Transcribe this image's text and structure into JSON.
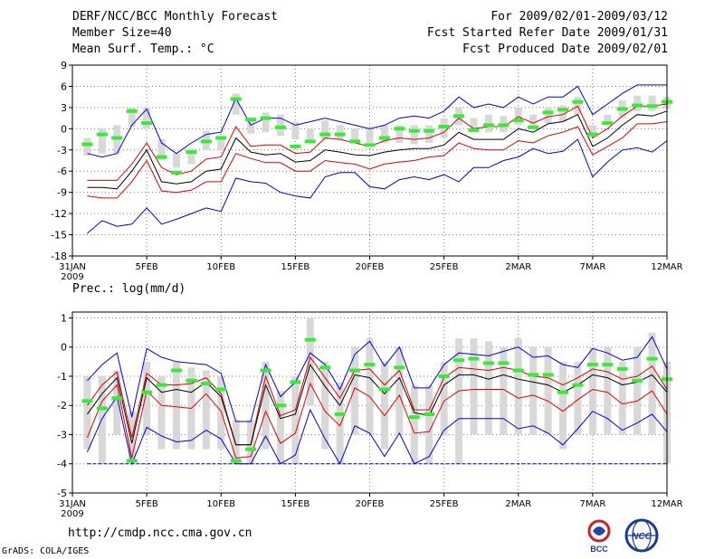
{
  "header": {
    "title": "DERF/NCC/BCC Monthly Forecast",
    "member_size": "Member Size=40",
    "variable": "Mean Surf. Temp.: °C",
    "forecast_period": "For 2009/02/01-2009/03/12",
    "start_date": "Fcst Started Refer Date 2009/01/31",
    "produced_date": "Fcst Produced Date 2009/02/01"
  },
  "footer": {
    "url": "http://cmdp.ncc.cma.gov.cn",
    "credit": "GrADS: COLA/IGES",
    "logo_left": "BCC",
    "logo_right": "NCC"
  },
  "colors": {
    "envelope": "#0000dd",
    "spread": "#dd0000",
    "mean": "#000000",
    "obs": "#33ee33",
    "box": "#d8d8d8",
    "floor_line": "#0000aa"
  },
  "x_ticks": [
    {
      "day": 0,
      "label": "31JAN",
      "label2": "2009"
    },
    {
      "day": 5,
      "label": "5FEB"
    },
    {
      "day": 10,
      "label": "10FEB"
    },
    {
      "day": 15,
      "label": "15FEB"
    },
    {
      "day": 20,
      "label": "20FEB"
    },
    {
      "day": 25,
      "label": "25FEB"
    },
    {
      "day": 30,
      "label": "2MAR"
    },
    {
      "day": 35,
      "label": "7MAR"
    },
    {
      "day": 40,
      "label": "12MAR"
    }
  ],
  "chart_data": [
    {
      "type": "line",
      "title": "Mean Surf. Temp.: °C",
      "ylim": [
        -18,
        9
      ],
      "yticks": [
        -18,
        -15,
        -12,
        -9,
        -6,
        -3,
        0,
        3,
        6,
        9
      ],
      "days": [
        1,
        2,
        3,
        4,
        5,
        6,
        7,
        8,
        9,
        10,
        11,
        12,
        13,
        14,
        15,
        16,
        17,
        18,
        19,
        20,
        21,
        22,
        23,
        24,
        25,
        26,
        27,
        28,
        29,
        30,
        31,
        32,
        33,
        34,
        35,
        36,
        37,
        38,
        39,
        40
      ],
      "series": [
        {
          "name": "max",
          "values": [
            -3.5,
            -4,
            -3.5,
            0.5,
            2.8,
            -2,
            -3.5,
            -2,
            -0.8,
            -0.5,
            4.3,
            0.5,
            1.5,
            1.5,
            0.5,
            1,
            1.5,
            1,
            0.5,
            0,
            0.5,
            1.5,
            1.8,
            1.5,
            2.5,
            4.5,
            3,
            3.5,
            3,
            4.5,
            3.5,
            4.5,
            4.5,
            6,
            2,
            3.5,
            5,
            6.2,
            6.2,
            6.2
          ]
        },
        {
          "name": "upper",
          "values": [
            -7.3,
            -7.3,
            -7.3,
            -5,
            -2,
            -5.5,
            -6.5,
            -6,
            -4.3,
            -4,
            0.3,
            -2.5,
            -2.3,
            -2.3,
            -3.5,
            -3.3,
            -1.3,
            -1.5,
            -2,
            -2.5,
            -1.7,
            -1.3,
            -1.5,
            -1.3,
            -0.5,
            1.5,
            0,
            0.3,
            0.3,
            1.7,
            0.8,
            1.7,
            2,
            3.2,
            -1.3,
            0,
            1.8,
            3.2,
            3.2,
            3.5
          ]
        },
        {
          "name": "mean",
          "values": [
            -8.3,
            -8.3,
            -8.5,
            -6,
            -3,
            -7.5,
            -7.8,
            -7.5,
            -6,
            -5.7,
            -1.3,
            -3.3,
            -3.7,
            -3.5,
            -4.7,
            -4.5,
            -3,
            -3.3,
            -3.7,
            -3.8,
            -3.3,
            -3,
            -2.8,
            -2.8,
            -2.3,
            -0.5,
            -1.5,
            -1.5,
            -1.5,
            0,
            -0.5,
            0.7,
            1,
            2,
            -2.5,
            -1.3,
            0.5,
            2,
            1.8,
            2.5
          ]
        },
        {
          "name": "lower",
          "values": [
            -9.5,
            -9.8,
            -9.8,
            -7.5,
            -4.5,
            -8.8,
            -9,
            -8.7,
            -7.5,
            -7.5,
            -3.5,
            -4.2,
            -4.8,
            -4.8,
            -6,
            -6,
            -4.5,
            -4.8,
            -5,
            -5.7,
            -5,
            -4.7,
            -4.5,
            -4,
            -3.8,
            -2,
            -2.8,
            -3,
            -3,
            -1.7,
            -2,
            -1,
            -0.5,
            0.3,
            -3.7,
            -2.5,
            -1.3,
            0.7,
            0.7,
            1
          ]
        },
        {
          "name": "min",
          "values": [
            -14.8,
            -13,
            -13.8,
            -13.5,
            -11.2,
            -13.5,
            -12.8,
            -12,
            -11.2,
            -11.7,
            -7,
            -7.5,
            -7.7,
            -9,
            -9.5,
            -9.8,
            -6.8,
            -6.2,
            -6.2,
            -8.2,
            -8.5,
            -7.2,
            -6.8,
            -7.2,
            -6.5,
            -7.5,
            -5.5,
            -5.5,
            -4.5,
            -4,
            -2.8,
            -3.5,
            -3.2,
            -1.5,
            -6.8,
            -4.7,
            -3,
            -2.7,
            -3.3,
            -1.7
          ]
        }
      ],
      "boxes_low": [
        -3.8,
        -3.5,
        -3.5,
        0.3,
        0,
        -4.5,
        -5.5,
        -5,
        -3,
        -3,
        2,
        -0.7,
        -0.5,
        -1,
        -1.5,
        -1.7,
        -1.5,
        -1.5,
        -2,
        -2,
        -2,
        -2,
        -2.2,
        -2,
        -1.3,
        0.5,
        -0.3,
        -0.5,
        -0.5,
        0.5,
        0,
        0.8,
        1,
        2,
        -0.8,
        0.5,
        1.5,
        2.5,
        2.5,
        2.8
      ],
      "boxes_high": [
        -1.3,
        0,
        0.5,
        3,
        3,
        -1.5,
        -3.5,
        -3,
        -0.3,
        -1,
        5,
        1.5,
        2.3,
        2,
        1,
        0,
        1.2,
        0.5,
        0,
        0,
        0.5,
        0.5,
        0.5,
        0.5,
        1.5,
        3,
        1.5,
        2,
        1.8,
        3,
        2,
        3,
        3.3,
        4.5,
        0.5,
        2,
        4,
        4.7,
        4.7,
        4.5
      ],
      "observed": [
        -2.2,
        -0.8,
        -1.3,
        2.5,
        0.8,
        -4,
        -6.2,
        -3.3,
        -1.8,
        -1.3,
        4.2,
        1.3,
        1.5,
        0.2,
        -2.5,
        -1.8,
        -0.8,
        -0.8,
        -1.8,
        -2.3,
        -1.3,
        0,
        -0.3,
        -0.3,
        0.3,
        1.8,
        -0.2,
        0.5,
        0.5,
        1.2,
        0.2,
        2.3,
        2.7,
        3.8,
        -0.8,
        0.8,
        2.8,
        3.3,
        3.2,
        3.8
      ]
    },
    {
      "type": "line",
      "title": "Prec.: log(mm/d)",
      "ylim": [
        -5,
        1.2
      ],
      "yticks": [
        -5,
        -4,
        -3,
        -2,
        -1,
        0,
        1
      ],
      "days": [
        1,
        2,
        3,
        4,
        5,
        6,
        7,
        8,
        9,
        10,
        11,
        12,
        13,
        14,
        15,
        16,
        17,
        18,
        19,
        20,
        21,
        22,
        23,
        24,
        25,
        26,
        27,
        28,
        29,
        30,
        31,
        32,
        33,
        34,
        35,
        36,
        37,
        38,
        39,
        40
      ],
      "series": [
        {
          "name": "max",
          "values": [
            -1.15,
            -0.6,
            -0.2,
            -2.4,
            -0.05,
            -0.35,
            -0.5,
            -0.55,
            -0.6,
            -0.9,
            -2.55,
            -2.55,
            -0.6,
            -1.7,
            -1.2,
            -0.2,
            -0.6,
            -1.45,
            -0.25,
            0.2,
            -0.65,
            0,
            -1.4,
            -1.4,
            -0.6,
            -0.2,
            -0.25,
            -0.3,
            -0.15,
            0,
            -0.35,
            -0.3,
            -0.6,
            -0.7,
            -0.05,
            -0.2,
            -0.45,
            -0.35,
            0.35,
            -0.75
          ]
        },
        {
          "name": "upper",
          "values": [
            -2,
            -1.3,
            -0.85,
            -3.1,
            -0.9,
            -1.3,
            -1.3,
            -1.25,
            -1.05,
            -1.6,
            -3.35,
            -3.35,
            -1,
            -2.35,
            -2.15,
            -0.35,
            -1.05,
            -1.75,
            -0.8,
            -0.75,
            -1.3,
            -0.8,
            -2.15,
            -2.15,
            -1.05,
            -0.7,
            -0.75,
            -0.8,
            -0.7,
            -0.8,
            -1,
            -1.05,
            -1.3,
            -1.05,
            -0.75,
            -0.85,
            -1.1,
            -1,
            -0.65,
            -1.45
          ]
        },
        {
          "name": "mean",
          "values": [
            -2.3,
            -1.6,
            -1.05,
            -3.3,
            -1.05,
            -1.55,
            -1.45,
            -1.55,
            -1.2,
            -1.7,
            -3.35,
            -3.35,
            -1.3,
            -2.45,
            -2.3,
            -0.6,
            -1.35,
            -2,
            -0.95,
            -1.05,
            -1.6,
            -1.05,
            -2.25,
            -2.35,
            -1.3,
            -0.95,
            -0.95,
            -1.1,
            -0.95,
            -1.1,
            -1.2,
            -1.3,
            -1.55,
            -1.3,
            -0.95,
            -1.05,
            -1.3,
            -1.2,
            -0.95,
            -1.55
          ]
        },
        {
          "name": "lower",
          "values": [
            -3.1,
            -1.85,
            -1.3,
            -3.8,
            -1.5,
            -2,
            -2.05,
            -2.1,
            -1.6,
            -2.2,
            -3.8,
            -3.75,
            -2.2,
            -3.3,
            -2.95,
            -1.25,
            -2.2,
            -2.7,
            -1.4,
            -1.7,
            -2.35,
            -1.65,
            -2.95,
            -2.9,
            -1.85,
            -1.5,
            -1.45,
            -1.45,
            -1.45,
            -1.75,
            -1.65,
            -1.85,
            -2.2,
            -1.8,
            -1.45,
            -1.55,
            -1.95,
            -1.85,
            -1.5,
            -2.3
          ]
        },
        {
          "name": "min",
          "values": [
            -3.6,
            -2.45,
            -1.7,
            -4,
            -2.75,
            -3.05,
            -3.25,
            -3.2,
            -2.85,
            -3.15,
            -4,
            -4,
            -3.05,
            -4,
            -3.7,
            -2.15,
            -3.15,
            -4,
            -2.7,
            -2.95,
            -3.75,
            -2.95,
            -4,
            -3.75,
            -2.85,
            -2.45,
            -2.45,
            -2.45,
            -2.45,
            -2.8,
            -2.7,
            -2.95,
            -3.35,
            -2.8,
            -2.2,
            -2.45,
            -2.85,
            -2.6,
            -2.3,
            -2.9
          ]
        },
        {
          "name": "floor",
          "values": [
            -4,
            -4,
            -4,
            -4,
            -4,
            -4,
            -4,
            -4,
            -4,
            -4,
            -4,
            -4,
            -4,
            -4,
            -4,
            -4,
            -4,
            -4,
            -4,
            -4,
            -4,
            -4,
            -4,
            -4,
            -4,
            -4,
            -4,
            -4,
            -4,
            -4,
            -4,
            -4,
            -4,
            -4,
            -4,
            -4,
            -4,
            -4,
            -4,
            -4
          ]
        }
      ],
      "boxes_low": [
        -3.5,
        -4,
        -3,
        -4,
        -3,
        -3.5,
        -3.5,
        -3.5,
        -3.5,
        -3.5,
        -4,
        -4,
        -3.5,
        -4,
        -4,
        -2,
        -3.5,
        -4,
        -3,
        -3,
        -3.5,
        -3,
        -4,
        -4,
        -3,
        -4,
        -3,
        -3,
        -3,
        -3,
        -3,
        -3,
        -3.5,
        -3,
        -3,
        -3,
        -3,
        -3,
        -3,
        -4
      ],
      "boxes_high": [
        -1,
        -1,
        -0.8,
        -2.2,
        -0.5,
        -1,
        -0.5,
        -0.7,
        -0.8,
        -1,
        -2.5,
        -2.5,
        -0.5,
        -1.5,
        -1,
        1,
        -0.5,
        -1.2,
        0,
        0.3,
        -0.5,
        0,
        -1.3,
        -1.3,
        -0.5,
        0.3,
        0.3,
        0.2,
        0,
        0.3,
        0,
        0,
        -0.5,
        -0.5,
        0,
        0,
        -0.5,
        0,
        0.5,
        -0.5
      ],
      "observed": [
        -1.85,
        -2.1,
        -1.75,
        -3.9,
        -1.55,
        -1.3,
        -0.8,
        -1.15,
        -1.25,
        -1.45,
        -3.9,
        -3.5,
        -0.8,
        -2,
        -1.2,
        0.25,
        -0.7,
        -2.3,
        -0.8,
        -0.6,
        -1.45,
        -0.7,
        -2.4,
        -2.3,
        -1,
        -0.45,
        -0.4,
        -0.55,
        -0.55,
        -0.8,
        -0.95,
        -0.95,
        -1.55,
        -1.3,
        -0.6,
        -0.6,
        -0.75,
        -1.15,
        -0.4,
        -1.1
      ]
    }
  ]
}
